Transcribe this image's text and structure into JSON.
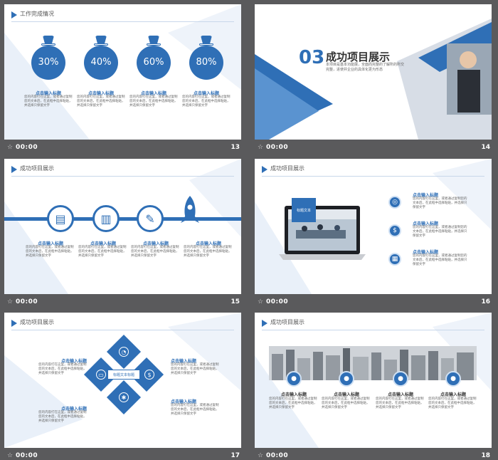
{
  "placeholder_title": "点击输入标题",
  "placeholder_body": "您的内容打在这里，或者通过复制您的文本后，在此框中选择粘贴，并选择只保留文字",
  "colors": {
    "accent": "#2f6fb6",
    "background": "#5a5a5c"
  },
  "slides": [
    {
      "num": "13",
      "time": "00:00",
      "header": "工作完成情况",
      "percents": [
        "30%",
        "40%",
        "60%",
        "80%"
      ]
    },
    {
      "num": "14",
      "time": "00:00",
      "section_number": "03",
      "section_title": "成功项目展示",
      "section_desc": "本项目是基本功能展，全面而完整的了解所的所交完整，进使并企业的具体化更为形态"
    },
    {
      "num": "15",
      "time": "00:00",
      "header": "成功项目展示"
    },
    {
      "num": "16",
      "time": "00:00",
      "header": "成功项目展示",
      "badge": "标题文本"
    },
    {
      "num": "17",
      "time": "00:00",
      "header": "成功项目展示",
      "center_label": "标题文本标题"
    },
    {
      "num": "18",
      "time": "00:00",
      "header": "成功项目展示"
    }
  ]
}
